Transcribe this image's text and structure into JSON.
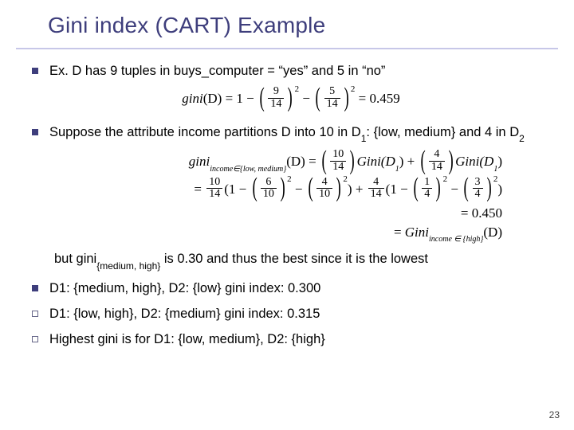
{
  "title": "Gini index (CART) Example",
  "page_number": "23",
  "colors": {
    "title": "#3e3e7c",
    "rule": "#c7c7e8",
    "bullet": "#3e3e7c",
    "text": "#000000",
    "background": "#ffffff"
  },
  "bullets": {
    "b1": {
      "text": "Ex.  D has 9 tuples in buys_computer = “yes” and 5 in “no”"
    },
    "b2": {
      "part1": "Suppose the attribute income partitions D into 10 in D",
      "sub1": "1",
      "part2": ": {low, medium} and 4 in D",
      "sub2": "2"
    },
    "indent_line": {
      "pre": "but gini",
      "sub": "{medium, high}",
      "post": " is 0.30 and thus the best since it is the lowest"
    },
    "b3": "D1: {medium, high}, D2: {low} gini index: 0.300",
    "b4": "D1: {low, high}, D2: {medium} gini index: 0.315",
    "b5": "Highest gini is for D1: {low, medium}, D2: {high}"
  },
  "formulas": {
    "f1": {
      "lhs": "gini",
      "arg": "(D)",
      "eq": " = 1 − ",
      "t1_num": "9",
      "t1_den": "14",
      "t2_num": "5",
      "t2_den": "14",
      "result": " = 0.459"
    },
    "f2a": {
      "lhs": "gini",
      "sub": "income∈{low, medium}",
      "arg": "(D)",
      "eq": " = ",
      "c1_num": "10",
      "c1_den": "14",
      "g1": "Gini(D",
      "g1sub": "1",
      "g1close": ")",
      "plus": " + ",
      "c2_num": "4",
      "c2_den": "14",
      "g2": "Gini(D",
      "g2sub": "1",
      "g2close": ")"
    },
    "f2b": {
      "eq": "= ",
      "c1_num": "10",
      "c1_den": "14",
      "open": "(1 − ",
      "t1_num": "6",
      "t1_den": "10",
      "mid": " − ",
      "t2_num": "4",
      "t2_den": "10",
      "close": ")",
      "plus": " + ",
      "c2_num": "4",
      "c2_den": "14",
      "open2": "(1 − ",
      "t3_num": "1",
      "t3_den": "4",
      "mid2": " − ",
      "t4_num": "3",
      "t4_den": "4",
      "close2": ")"
    },
    "f2c": {
      "text": "= 0.450"
    },
    "f2d": {
      "eq": "= ",
      "lhs": "Gini",
      "sub": "income ∈ {high}",
      "arg": "(D)"
    }
  }
}
